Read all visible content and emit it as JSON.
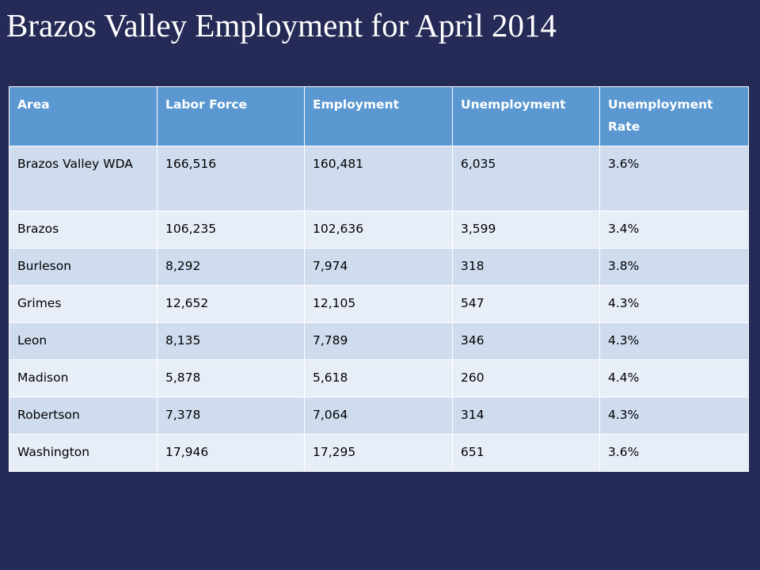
{
  "slide": {
    "title": "Brazos Valley Employment for April 2014"
  },
  "table": {
    "headers": [
      "Area",
      "Labor Force",
      "Employment",
      "Unemployment",
      "Unemployment Rate"
    ],
    "rows": [
      [
        "Brazos Valley WDA",
        "166,516",
        "160,481",
        "6,035",
        "3.6%"
      ],
      [
        "Brazos",
        "106,235",
        "102,636",
        "3,599",
        "3.4%"
      ],
      [
        "Burleson",
        "8,292",
        "7,974",
        "318",
        "3.8%"
      ],
      [
        "Grimes",
        "12,652",
        "12,105",
        "547",
        "4.3%"
      ],
      [
        "Leon",
        "8,135",
        "7,789",
        "346",
        "4.3%"
      ],
      [
        "Madison",
        "5,878",
        "5,618",
        "260",
        "4.4%"
      ],
      [
        "Robertson",
        "7,378",
        "7,064",
        "314",
        "4.3%"
      ],
      [
        "Washington",
        "17,946",
        "17,295",
        "651",
        "3.6%"
      ]
    ]
  },
  "colors": {
    "background": "#262a56",
    "header_fill": "#5b98d1",
    "row_odd": "#cfdcee",
    "row_even": "#e8eef8"
  }
}
